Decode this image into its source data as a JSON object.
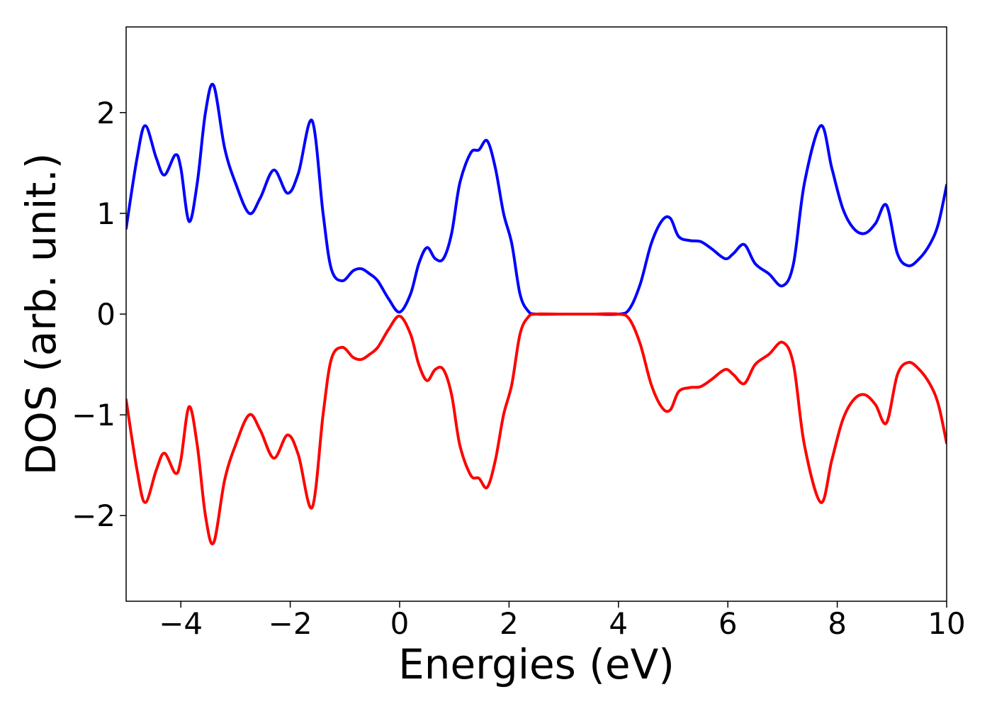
{
  "chart_data": {
    "type": "line",
    "title": "",
    "xlabel": "Energies (eV)",
    "ylabel": "DOS (arb. unit.)",
    "xlim": [
      -5,
      10
    ],
    "ylim": [
      -2.85,
      2.85
    ],
    "grid": false,
    "legend": "none",
    "x_ticks": [
      -4,
      -2,
      0,
      2,
      4,
      6,
      8,
      10
    ],
    "x_tick_labels": [
      "−4",
      "−2",
      "0",
      "2",
      "4",
      "6",
      "8",
      "10"
    ],
    "y_ticks": [
      2,
      1,
      0,
      -1,
      -2
    ],
    "y_tick_labels": [
      "2",
      "1",
      "0",
      "−1",
      "−2"
    ],
    "series": [
      {
        "color": "#0000ff",
        "x": [
          -5.0,
          -4.8,
          -4.65,
          -4.45,
          -4.3,
          -4.1,
          -4.0,
          -3.85,
          -3.7,
          -3.55,
          -3.4,
          -3.2,
          -3.0,
          -2.75,
          -2.55,
          -2.3,
          -2.05,
          -1.85,
          -1.6,
          -1.4,
          -1.25,
          -1.05,
          -0.85,
          -0.7,
          -0.55,
          -0.4,
          -0.2,
          0.0,
          0.2,
          0.35,
          0.5,
          0.65,
          0.8,
          0.95,
          1.1,
          1.3,
          1.45,
          1.6,
          1.75,
          1.9,
          2.05,
          2.2,
          2.35,
          2.5,
          3.0,
          3.5,
          4.0,
          4.2,
          4.4,
          4.6,
          4.8,
          4.95,
          5.1,
          5.3,
          5.5,
          5.7,
          5.95,
          6.1,
          6.3,
          6.5,
          6.75,
          7.0,
          7.2,
          7.4,
          7.7,
          7.9,
          8.1,
          8.3,
          8.5,
          8.7,
          8.9,
          9.1,
          9.3,
          9.5,
          9.7,
          9.85,
          10.0
        ],
        "y": [
          0.85,
          1.55,
          1.87,
          1.55,
          1.38,
          1.58,
          1.45,
          0.92,
          1.3,
          2.0,
          2.27,
          1.65,
          1.3,
          1.0,
          1.15,
          1.43,
          1.2,
          1.4,
          1.92,
          1.0,
          0.45,
          0.33,
          0.43,
          0.45,
          0.4,
          0.33,
          0.15,
          0.02,
          0.2,
          0.5,
          0.66,
          0.55,
          0.55,
          0.8,
          1.3,
          1.6,
          1.63,
          1.72,
          1.45,
          1.0,
          0.7,
          0.2,
          0.03,
          0.0,
          0.0,
          0.0,
          0.0,
          0.05,
          0.3,
          0.7,
          0.93,
          0.95,
          0.77,
          0.73,
          0.72,
          0.65,
          0.55,
          0.6,
          0.69,
          0.5,
          0.4,
          0.28,
          0.5,
          1.3,
          1.87,
          1.45,
          1.05,
          0.85,
          0.8,
          0.9,
          1.08,
          0.6,
          0.48,
          0.55,
          0.7,
          0.9,
          1.28
        ]
      },
      {
        "color": "#ff0000",
        "x": [
          -5.0,
          -4.8,
          -4.65,
          -4.45,
          -4.3,
          -4.1,
          -4.0,
          -3.85,
          -3.7,
          -3.55,
          -3.4,
          -3.2,
          -3.0,
          -2.75,
          -2.55,
          -2.3,
          -2.05,
          -1.85,
          -1.6,
          -1.4,
          -1.25,
          -1.05,
          -0.85,
          -0.7,
          -0.55,
          -0.4,
          -0.2,
          0.0,
          0.2,
          0.35,
          0.5,
          0.65,
          0.8,
          0.95,
          1.1,
          1.3,
          1.45,
          1.6,
          1.75,
          1.9,
          2.05,
          2.2,
          2.35,
          2.5,
          3.0,
          3.5,
          4.0,
          4.2,
          4.4,
          4.6,
          4.8,
          4.95,
          5.1,
          5.3,
          5.5,
          5.7,
          5.95,
          6.1,
          6.3,
          6.5,
          6.75,
          7.0,
          7.2,
          7.4,
          7.7,
          7.9,
          8.1,
          8.3,
          8.5,
          8.7,
          8.9,
          9.1,
          9.3,
          9.5,
          9.7,
          9.85,
          10.0
        ],
        "y": [
          -0.85,
          -1.55,
          -1.87,
          -1.55,
          -1.38,
          -1.58,
          -1.45,
          -0.92,
          -1.3,
          -2.0,
          -2.27,
          -1.65,
          -1.3,
          -1.0,
          -1.15,
          -1.43,
          -1.2,
          -1.4,
          -1.92,
          -1.0,
          -0.45,
          -0.33,
          -0.43,
          -0.45,
          -0.4,
          -0.33,
          -0.15,
          -0.02,
          -0.2,
          -0.5,
          -0.66,
          -0.55,
          -0.55,
          -0.8,
          -1.3,
          -1.6,
          -1.63,
          -1.72,
          -1.45,
          -1.0,
          -0.7,
          -0.2,
          -0.03,
          -0.0,
          -0.0,
          -0.0,
          -0.0,
          -0.05,
          -0.3,
          -0.7,
          -0.93,
          -0.95,
          -0.77,
          -0.73,
          -0.72,
          -0.65,
          -0.55,
          -0.6,
          -0.69,
          -0.5,
          -0.4,
          -0.28,
          -0.5,
          -1.3,
          -1.87,
          -1.45,
          -1.05,
          -0.85,
          -0.8,
          -0.9,
          -1.08,
          -0.6,
          -0.48,
          -0.55,
          -0.7,
          -0.9,
          -1.28
        ]
      }
    ]
  }
}
